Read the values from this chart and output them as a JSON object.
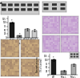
{
  "chart_left": {
    "categories": [
      "siCtrl\nWT",
      "siCtrl\nRela-/-",
      "siBid#1\nRela-/-",
      "siBid#2\nRela-/-"
    ],
    "values": [
      100,
      12,
      55,
      48
    ],
    "errors": [
      6,
      3,
      9,
      8
    ],
    "colors": [
      "#1a1a1a",
      "#888888",
      "#aaaaaa",
      "#cccccc"
    ],
    "ylabel": "Osteoclast number\n(% of control)",
    "ylim": [
      0,
      140
    ],
    "yticks": [
      0,
      25,
      50,
      75,
      100,
      125
    ]
  },
  "chart_right": {
    "categories": [
      "WT",
      "Rela-/-",
      "Rela-/-\nsiBid"
    ],
    "values": [
      100,
      28,
      68
    ],
    "errors": [
      10,
      4,
      9
    ],
    "colors": [
      "#1a1a1a",
      "#888888",
      "#aaaaaa"
    ],
    "ylabel": "Resorption area\n(% of control)",
    "ylim": [
      0,
      140
    ],
    "yticks": [
      0,
      25,
      50,
      75,
      100,
      125
    ]
  },
  "background_color": "#ffffff",
  "panel_bg": "#dddddd",
  "blot_colors": {
    "band_dark": "#222222",
    "band_mid": "#555555",
    "bg_light": "#cccccc",
    "bg_strip": "#e0e0e0"
  },
  "micro_purple": "#c8a0c8",
  "micro_tan": "#c8a878"
}
